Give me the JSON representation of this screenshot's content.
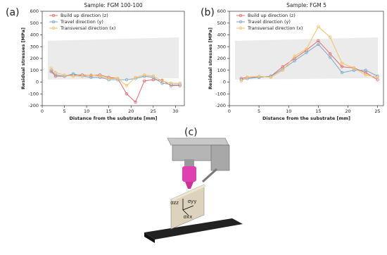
{
  "chart_data": [
    {
      "type": "line",
      "panel_label": "(a)",
      "title": "Sample: FGM 100-100",
      "xlabel": "Distance from the substrate [mm]",
      "ylabel": "Residual stresses [MPa]",
      "x": [
        2,
        3,
        5,
        7,
        9,
        11,
        13,
        15,
        17,
        19,
        21,
        23,
        25,
        27,
        29,
        31
      ],
      "series": [
        {
          "name": "Build up direction (z)",
          "color": "#e06c6c",
          "values": [
            90,
            50,
            50,
            60,
            60,
            55,
            60,
            40,
            30,
            -100,
            -170,
            10,
            20,
            15,
            -30,
            -30
          ]
        },
        {
          "name": "Travel direction (y)",
          "color": "#7fa6c9",
          "values": [
            100,
            60,
            50,
            70,
            50,
            40,
            40,
            20,
            20,
            20,
            30,
            50,
            40,
            -10,
            -20,
            -20
          ]
        },
        {
          "name": "Transversal direction (x)",
          "color": "#f3c06a",
          "values": [
            120,
            80,
            60,
            50,
            50,
            60,
            50,
            30,
            30,
            -30,
            40,
            60,
            50,
            10,
            -10,
            -10
          ]
        }
      ],
      "xlim": [
        0,
        32
      ],
      "ylim": [
        -200,
        600
      ],
      "xticks": [
        0,
        5,
        10,
        15,
        20,
        25,
        30
      ],
      "yticks": [
        -200,
        -100,
        0,
        100,
        200,
        300,
        400,
        500,
        600
      ],
      "legend": "upper left"
    },
    {
      "type": "line",
      "panel_label": "(b)",
      "title": "Sample: FGM 5",
      "xlabel": "Distance from the substrate [mm]",
      "ylabel": "Residual stresses [MPa]",
      "x": [
        2,
        3,
        5,
        7,
        9,
        11,
        13,
        15,
        17,
        19,
        21,
        23,
        25
      ],
      "series": [
        {
          "name": "Build up direction (z)",
          "color": "#e06c6c",
          "values": [
            30,
            40,
            40,
            50,
            130,
            200,
            270,
            350,
            240,
            130,
            120,
            80,
            20
          ]
        },
        {
          "name": "Travel direction (y)",
          "color": "#7fa6c9",
          "values": [
            20,
            30,
            40,
            50,
            110,
            180,
            250,
            320,
            210,
            80,
            100,
            100,
            50
          ]
        },
        {
          "name": "Transversal direction (x)",
          "color": "#f3c06a",
          "values": [
            10,
            40,
            50,
            40,
            100,
            220,
            280,
            470,
            380,
            160,
            120,
            60,
            40
          ]
        }
      ],
      "xlim": [
        0,
        26
      ],
      "ylim": [
        -200,
        600
      ],
      "xticks": [
        0,
        5,
        10,
        15,
        20,
        25
      ],
      "yticks": [
        -200,
        -100,
        0,
        100,
        200,
        300,
        400,
        500,
        600
      ],
      "legend": "upper left"
    }
  ],
  "illustration": {
    "panel_label": "(c)",
    "labels": [
      "σzz",
      "σyy",
      "σxx"
    ]
  }
}
